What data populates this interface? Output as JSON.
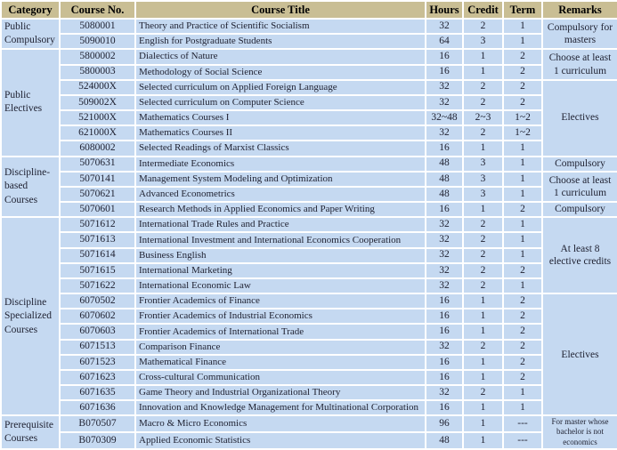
{
  "colors": {
    "header_bg": "#C9BE94",
    "row_bg": "#C5D9F1",
    "border": "#FFFFFF",
    "header_text": "#000000",
    "body_text": "#1E2030"
  },
  "table": {
    "columns": [
      "Category",
      "Course No.",
      "Course Title",
      "Hours",
      "Credit",
      "Term",
      "Remarks"
    ],
    "rows": [
      {
        "course_no": "5080001",
        "title": "Theory and Practice of Scientific Socialism",
        "hours": "32",
        "credit": "2",
        "term": "1"
      },
      {
        "course_no": "5090010",
        "title": "English for Postgraduate Students",
        "hours": "64",
        "credit": "3",
        "term": "1"
      },
      {
        "course_no": "5800002",
        "title": "Dialectics of Nature",
        "hours": "16",
        "credit": "1",
        "term": "2"
      },
      {
        "course_no": "5800003",
        "title": "Methodology of Social Science",
        "hours": "16",
        "credit": "1",
        "term": "2"
      },
      {
        "course_no": "524000X",
        "title": "Selected curriculum on Applied Foreign Language",
        "hours": "32",
        "credit": "2",
        "term": "2"
      },
      {
        "course_no": "509002X",
        "title": "Selected curriculum on Computer Science",
        "hours": "32",
        "credit": "2",
        "term": "2"
      },
      {
        "course_no": "521000X",
        "title": "Mathematics Courses  I",
        "hours": "32~48",
        "credit": "2~3",
        "term": "1~2"
      },
      {
        "course_no": "621000X",
        "title": "Mathematics Courses II",
        "hours": "32",
        "credit": "2",
        "term": "1~2"
      },
      {
        "course_no": "6080002",
        "title": "Selected Readings of Marxist Classics",
        "hours": "16",
        "credit": "1",
        "term": "1"
      },
      {
        "course_no": "5070631",
        "title": "Intermediate Economics",
        "hours": "48",
        "credit": "3",
        "term": "1"
      },
      {
        "course_no": "5070141",
        "title": "Management System Modeling and Optimization",
        "hours": "48",
        "credit": "3",
        "term": "1"
      },
      {
        "course_no": "5070621",
        "title": "Advanced Econometrics",
        "hours": "48",
        "credit": "3",
        "term": "1"
      },
      {
        "course_no": "5070601",
        "title": "Research Methods in Applied Economics and Paper Writing",
        "hours": "16",
        "credit": "1",
        "term": "2"
      },
      {
        "course_no": "5071612",
        "title": "International Trade Rules and Practice",
        "hours": "32",
        "credit": "2",
        "term": "1"
      },
      {
        "course_no": "5071613",
        "title": "International Investment and International Economics Cooperation",
        "hours": "32",
        "credit": "2",
        "term": "1"
      },
      {
        "course_no": "5071614",
        "title": "Business English",
        "hours": "32",
        "credit": "2",
        "term": "1"
      },
      {
        "course_no": "5071615",
        "title": "International Marketing",
        "hours": "32",
        "credit": "2",
        "term": "2"
      },
      {
        "course_no": "5071622",
        "title": "International Economic Law",
        "hours": "32",
        "credit": "2",
        "term": "1"
      },
      {
        "course_no": "6070502",
        "title": "Frontier Academics  of Finance",
        "hours": "16",
        "credit": "1",
        "term": "2"
      },
      {
        "course_no": "6070602",
        "title": "Frontier Academics  of Industrial Economics",
        "hours": "16",
        "credit": "1",
        "term": "2"
      },
      {
        "course_no": "6070603",
        "title": "Frontier Academics  of International Trade",
        "hours": "16",
        "credit": "1",
        "term": "2"
      },
      {
        "course_no": "6071513",
        "title": "Comparison Finance",
        "hours": "32",
        "credit": "2",
        "term": "2"
      },
      {
        "course_no": "6071523",
        "title": "Mathematical Finance",
        "hours": "16",
        "credit": "1",
        "term": "2"
      },
      {
        "course_no": "6071623",
        "title": "Cross-cultural Communication",
        "hours": "16",
        "credit": "1",
        "term": "2"
      },
      {
        "course_no": "6071635",
        "title": "Game Theory and Industrial Organizational Theory",
        "hours": "32",
        "credit": "2",
        "term": "1"
      },
      {
        "course_no": "6071636",
        "title": "Innovation and Knowledge Management for Multinational Corporation",
        "hours": "16",
        "credit": "1",
        "term": "1"
      },
      {
        "course_no": "B070507",
        "title": "Macro & Micro Economics",
        "hours": "96",
        "credit": "1",
        "term": "---"
      },
      {
        "course_no": "B070309",
        "title": "Applied Economic Statistics",
        "hours": "48",
        "credit": "1",
        "term": "---"
      }
    ],
    "categories": [
      {
        "start": 0,
        "rowspan": 2,
        "label": "Public Compulsory"
      },
      {
        "start": 2,
        "rowspan": 7,
        "label": "Public Electives"
      },
      {
        "start": 9,
        "rowspan": 4,
        "label": "Discipline-based Courses"
      },
      {
        "start": 13,
        "rowspan": 13,
        "label": "Discipline Specialized Courses"
      },
      {
        "start": 26,
        "rowspan": 2,
        "label": "Prerequisite Courses"
      }
    ],
    "remarks": [
      {
        "start": 0,
        "rowspan": 2,
        "label": "Compulsory for masters"
      },
      {
        "start": 2,
        "rowspan": 2,
        "label": "Choose at least 1 curriculum"
      },
      {
        "start": 4,
        "rowspan": 5,
        "label": "Electives"
      },
      {
        "start": 9,
        "rowspan": 1,
        "label": "Compulsory"
      },
      {
        "start": 10,
        "rowspan": 2,
        "label": "Choose at least 1 curriculum"
      },
      {
        "start": 12,
        "rowspan": 1,
        "label": "Compulsory"
      },
      {
        "start": 13,
        "rowspan": 5,
        "label": "At least 8 elective credits"
      },
      {
        "start": 18,
        "rowspan": 8,
        "label": "Electives"
      },
      {
        "start": 26,
        "rowspan": 2,
        "label": "For master whose bachelor is not economics",
        "small": true
      }
    ]
  }
}
